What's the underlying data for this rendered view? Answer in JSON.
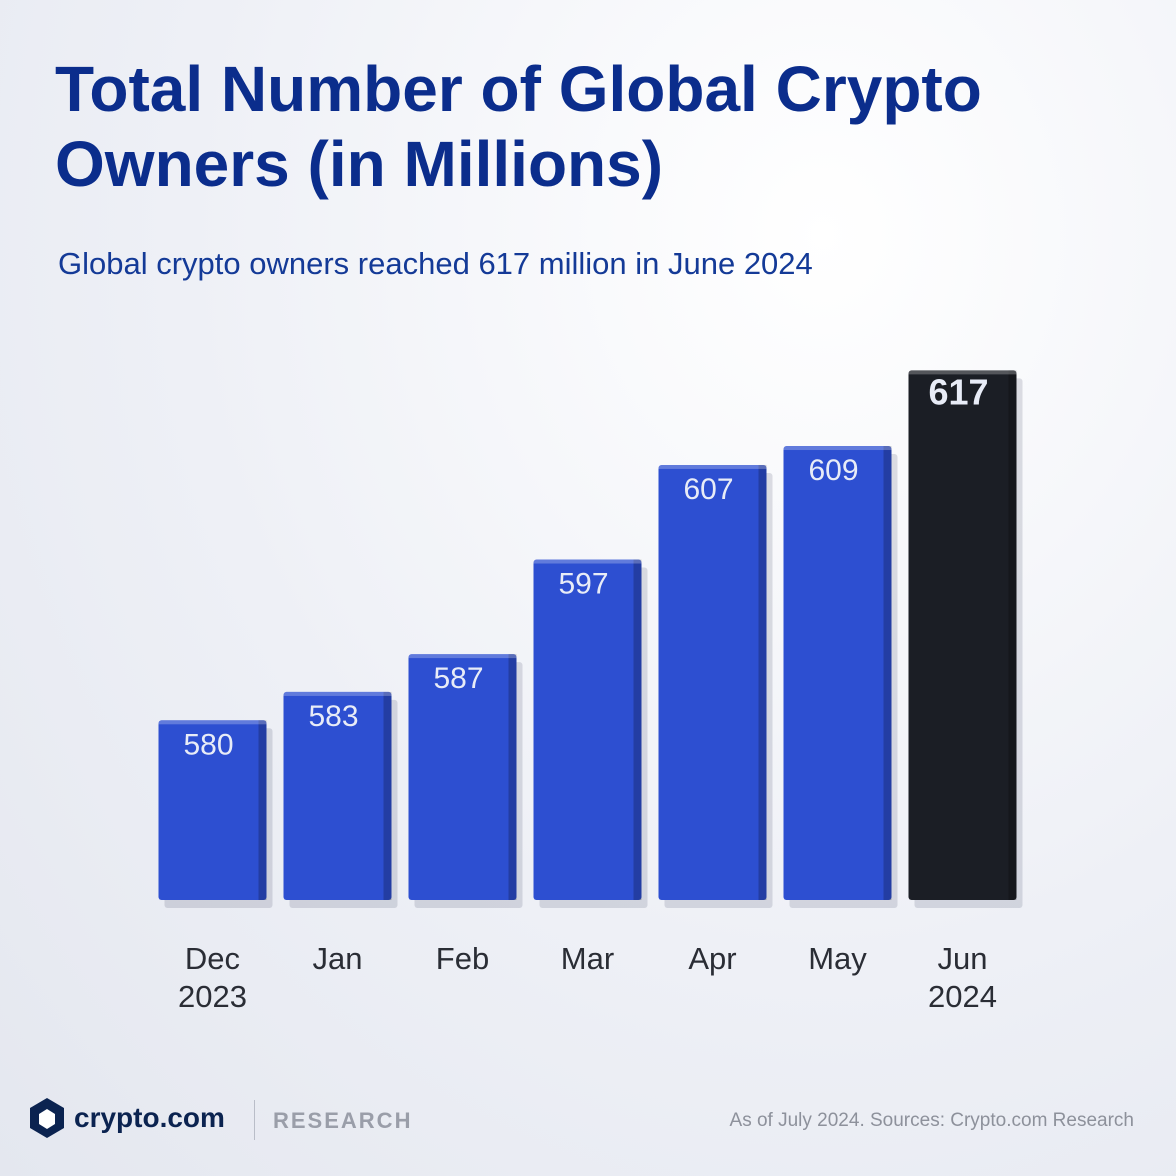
{
  "chart_data": {
    "type": "bar",
    "title": "Total Number of Global Crypto Owners (in Millions)",
    "subtitle": "Global crypto owners reached 617 million in June 2024",
    "categories": [
      "Dec 2023",
      "Jan",
      "Feb",
      "Mar",
      "Apr",
      "May",
      "Jun 2024"
    ],
    "values": [
      580,
      583,
      587,
      597,
      607,
      609,
      617
    ],
    "colors": [
      "#2d4fd1",
      "#2d4fd1",
      "#2d4fd1",
      "#2d4fd1",
      "#2d4fd1",
      "#2d4fd1",
      "#1b1e25"
    ],
    "ylim": [
      561,
      620
    ]
  },
  "footer": {
    "brand": "crypto.com",
    "section": "RESEARCH",
    "note": "As of July 2024. Sources: Crypto.com Research"
  }
}
